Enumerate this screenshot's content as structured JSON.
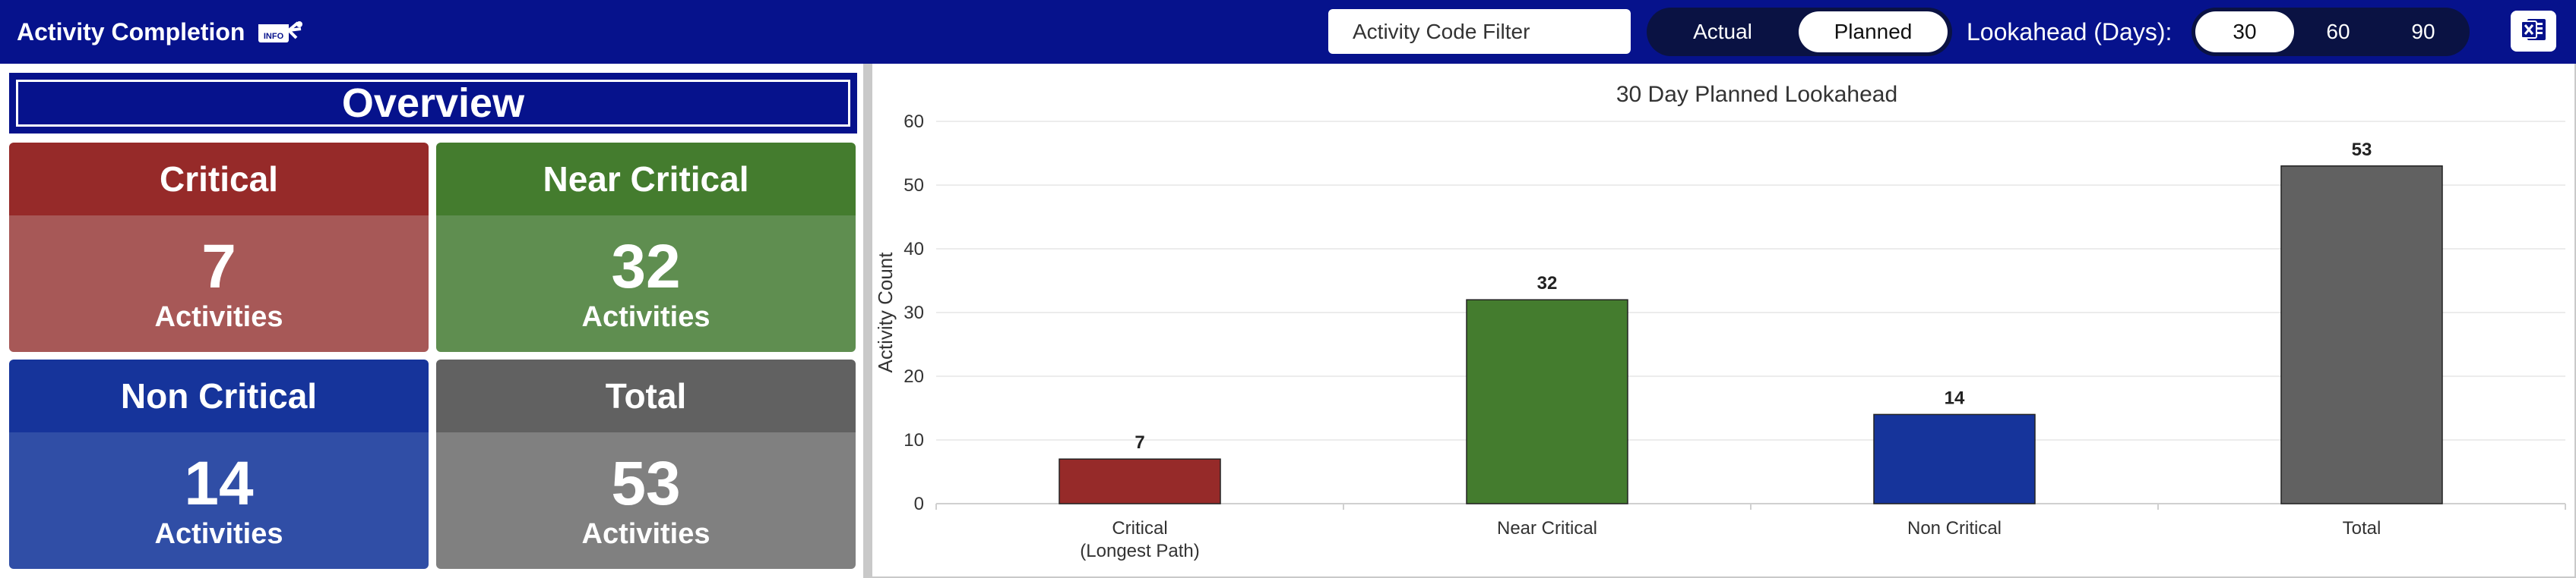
{
  "header": {
    "title": "Activity Completion",
    "info_icon": "info-gift-icon",
    "filter_placeholder": "Activity Code Filter",
    "mode_buttons": [
      {
        "label": "Actual",
        "active": false
      },
      {
        "label": "Planned",
        "active": true
      }
    ],
    "lookahead_label": "Lookahead (Days):",
    "lookahead_buttons": [
      {
        "label": "30",
        "active": true
      },
      {
        "label": "60",
        "active": false
      },
      {
        "label": "90",
        "active": false
      }
    ],
    "export_icon": "excel-export-icon"
  },
  "overview": {
    "title": "Overview",
    "cards": [
      {
        "label": "Critical",
        "value": "7",
        "unit": "Activities",
        "head_color": "#962a29",
        "body_color": "#a75857"
      },
      {
        "label": "Near Critical",
        "value": "32",
        "unit": "Activities",
        "head_color": "#447c2e",
        "body_color": "#5f8e50"
      },
      {
        "label": "Non Critical",
        "value": "14",
        "unit": "Activities",
        "head_color": "#16349b",
        "body_color": "#304ea6"
      },
      {
        "label": "Total",
        "value": "53",
        "unit": "Activities",
        "head_color": "#616161",
        "body_color": "#808080"
      }
    ]
  },
  "chart_data": {
    "type": "bar",
    "title": "30 Day Planned Lookahead",
    "xlabel": "",
    "ylabel": "Activity Count",
    "ylim": [
      0,
      60
    ],
    "yticks": [
      0,
      10,
      20,
      30,
      40,
      50,
      60
    ],
    "grid": true,
    "categories": [
      "Critical\n(Longest Path)",
      "Near Critical",
      "Non Critical",
      "Total"
    ],
    "values": [
      7,
      32,
      14,
      53
    ],
    "colors": [
      "#962a29",
      "#447c2e",
      "#16349b",
      "#616161"
    ],
    "data_labels": [
      "7",
      "32",
      "14",
      "53"
    ]
  }
}
